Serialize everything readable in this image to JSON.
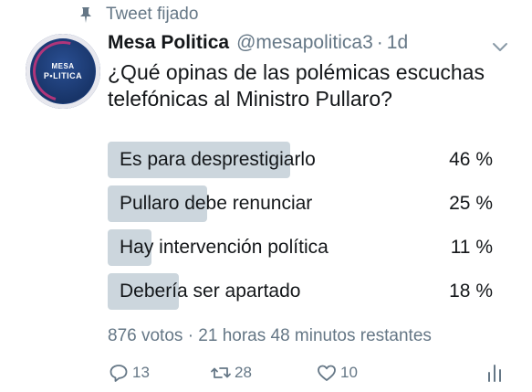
{
  "pinned": {
    "label": "Tweet fijado",
    "icon": "pin-icon"
  },
  "author": {
    "name": "Mesa Politica",
    "handle": "@mesapolitica3",
    "separator": "·",
    "time": "1d",
    "avatar": {
      "line1": "MESA",
      "line2": "P•LITICA",
      "colors": {
        "background": "#1c3d7a",
        "accent": "#b0357a"
      }
    }
  },
  "tweet": {
    "text": "¿Qué opinas de las polémicas escuchas telefónicas al Ministro Pullaro?"
  },
  "poll": {
    "options": [
      {
        "label": "Es para desprestigiarlo",
        "percent_label": "46 %",
        "percent": 46
      },
      {
        "label": "Pullaro debe renunciar",
        "percent_label": "25 %",
        "percent": 25
      },
      {
        "label": "Hay intervención política",
        "percent_label": "11 %",
        "percent": 11
      },
      {
        "label": "Debería ser apartado",
        "percent_label": "18 %",
        "percent": 18
      }
    ],
    "votes": "876 votos",
    "separator": "·",
    "remaining": "21 horas 48 minutos restantes",
    "bar_color": "#ccd6dd"
  },
  "actions": {
    "reply": {
      "icon": "reply-icon",
      "count": "13"
    },
    "retweet": {
      "icon": "retweet-icon",
      "count": "28"
    },
    "like": {
      "icon": "heart-icon",
      "count": "10"
    },
    "analytics": {
      "icon": "analytics-icon"
    }
  },
  "colors": {
    "text": "#14171a",
    "secondary": "#657786"
  }
}
